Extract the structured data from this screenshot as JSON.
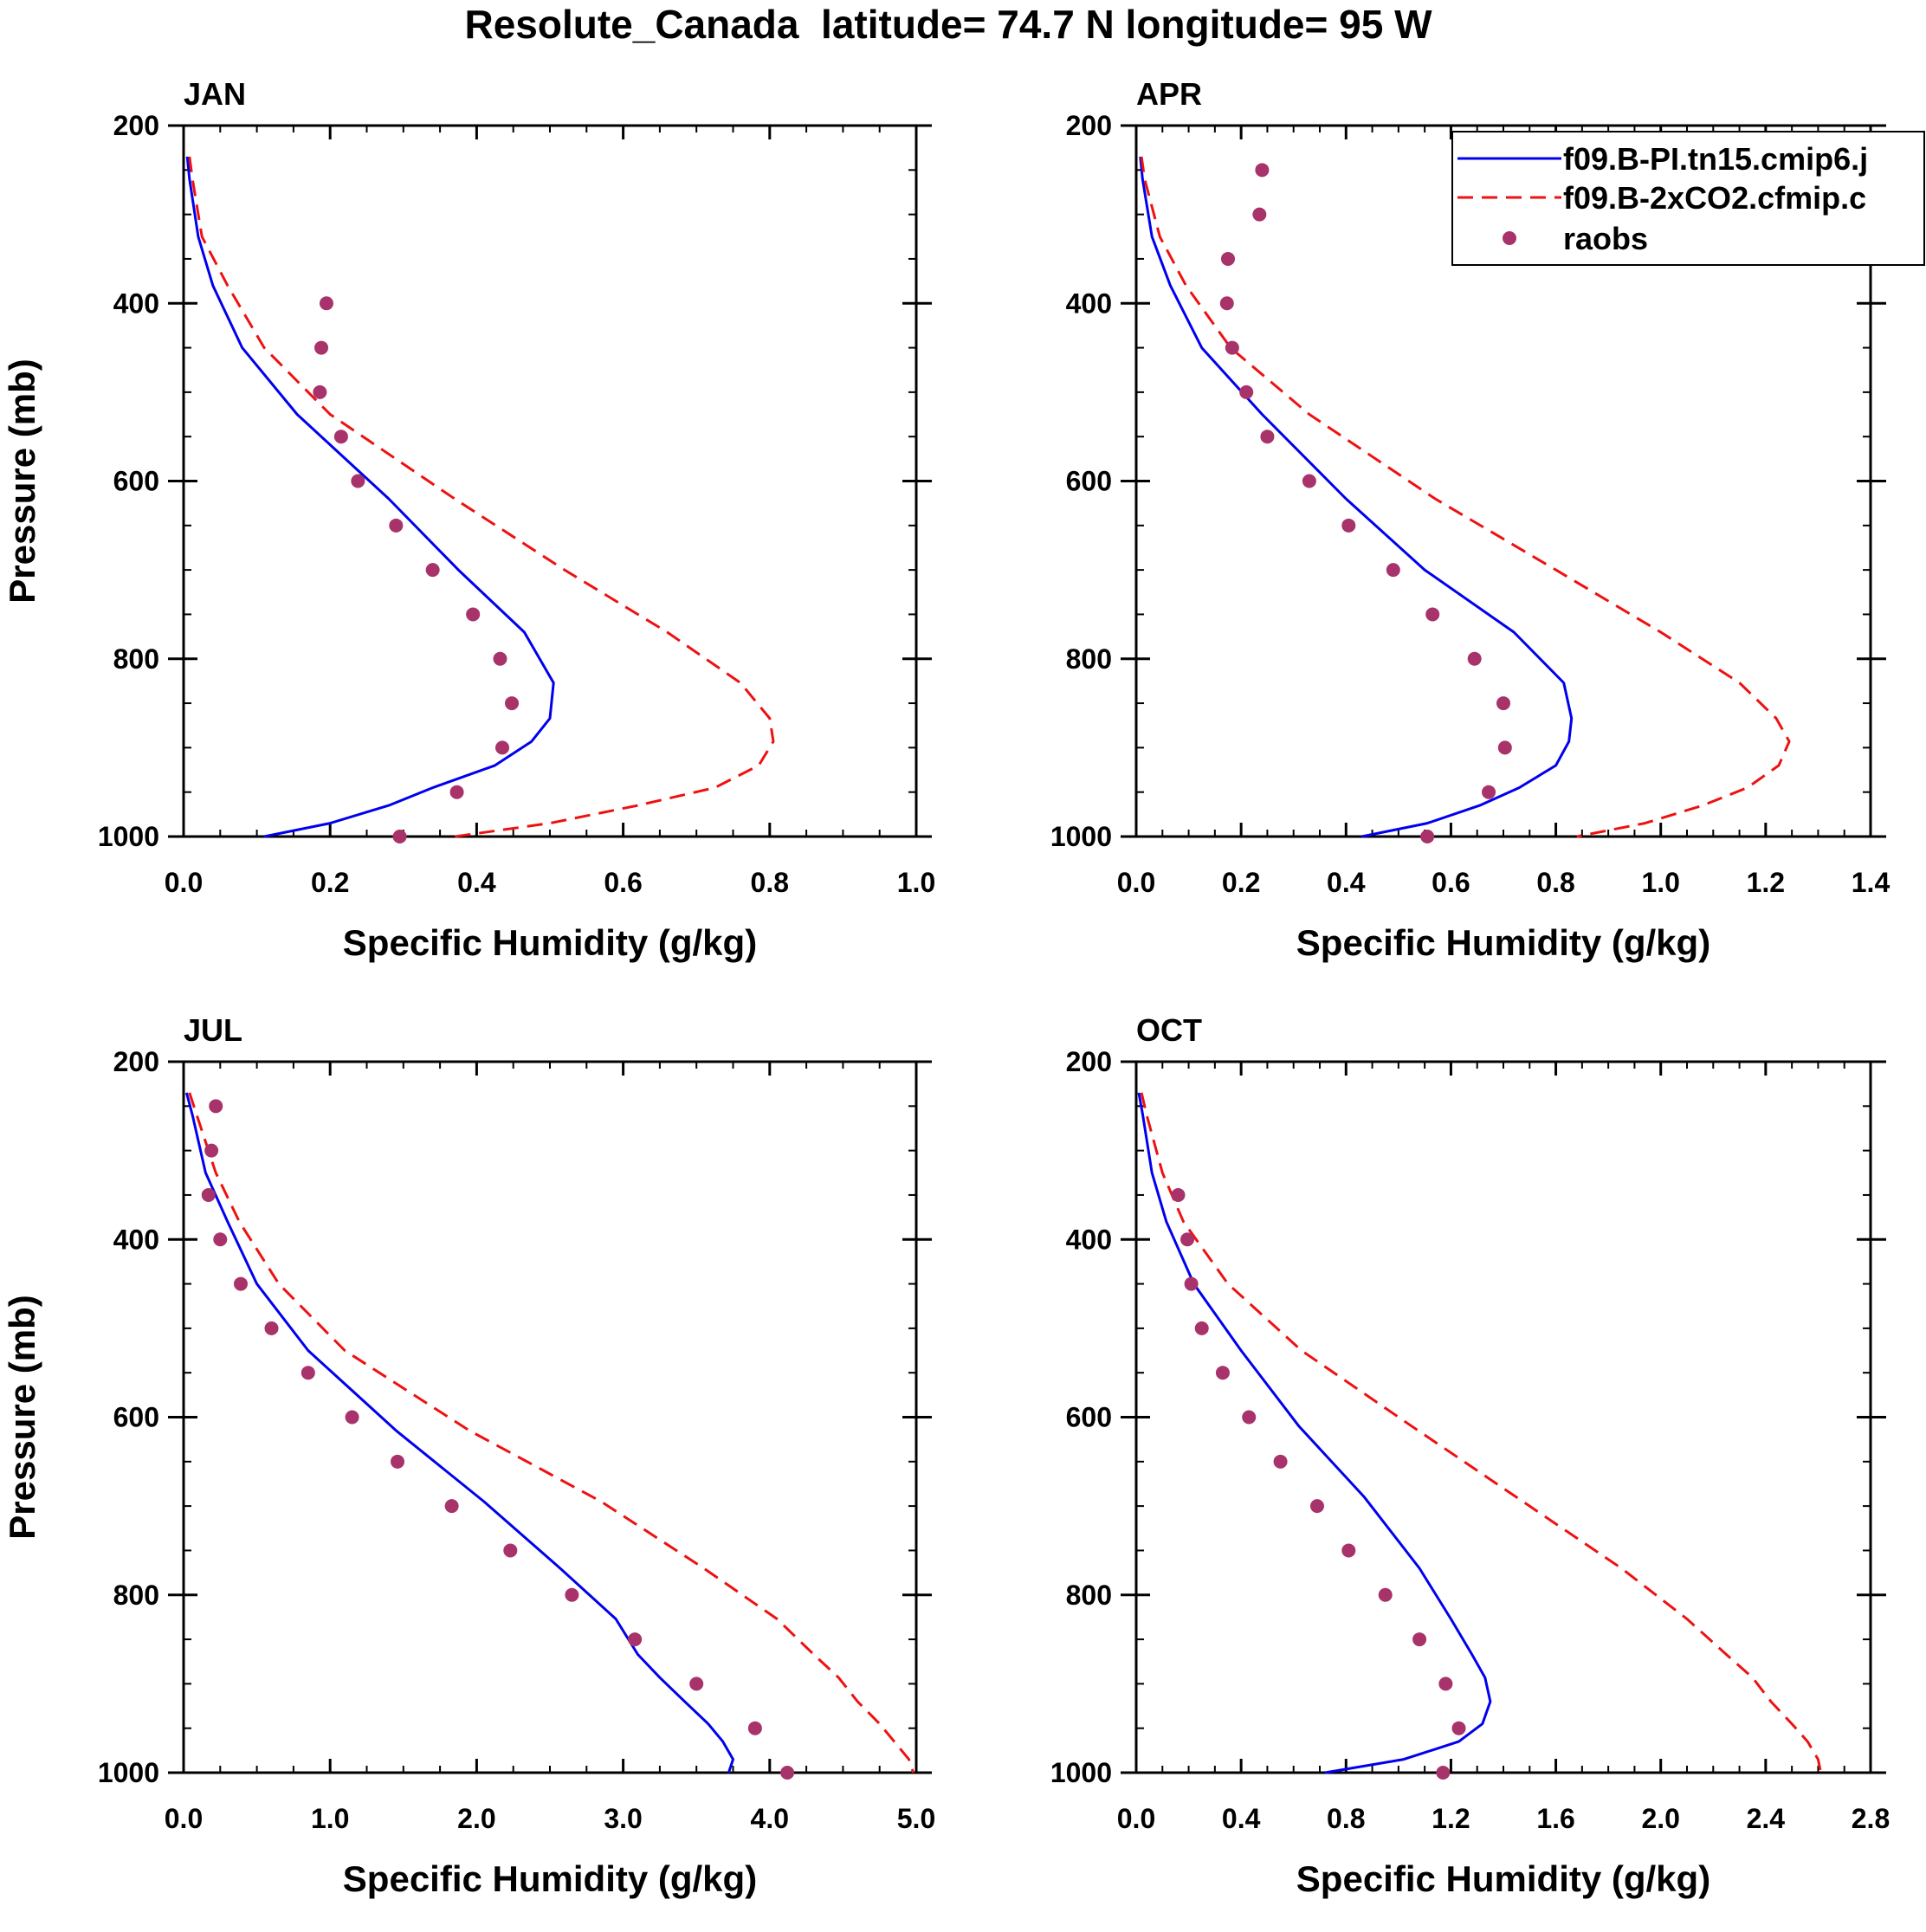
{
  "figure_title": "Resolute_Canada  latitude= 74.7 N longitude= 95 W",
  "colors": {
    "model1": "#0000ee",
    "model2": "#ee1111",
    "raobs": "#a8326a",
    "axes": "#000000"
  },
  "legend": {
    "position": "top-right of APR panel",
    "entries": [
      {
        "label": "f09.B-PI.tn15.cmip6.j",
        "style": "solid",
        "color": "#0000ee"
      },
      {
        "label": "f09.B-2xCO2.cfmip.c",
        "style": "dashed",
        "color": "#ee1111"
      },
      {
        "label": "raobs",
        "style": "markers",
        "color": "#a8326a"
      }
    ]
  },
  "chart_data": [
    {
      "type": "line",
      "title": "JAN",
      "xlabel": "Specific Humidity (g/kg)",
      "ylabel": "Pressure (mb)",
      "xlim": [
        0,
        1.0
      ],
      "ylim": [
        200,
        1000
      ],
      "y_inverted": true,
      "xticks": [
        0,
        0.2,
        0.4,
        0.6,
        0.8,
        1.0
      ],
      "xtick_labels": [
        "0.0",
        "0.2",
        "0.4",
        "0.6",
        "0.8",
        "1.0"
      ],
      "yticks": [
        200,
        400,
        600,
        800,
        1000
      ],
      "ytick_labels": [
        "200",
        "400",
        "600",
        "800",
        "1000"
      ],
      "series": [
        {
          "name": "f09.B-PI.tn15.cmip6.j",
          "style": "solid",
          "color": "#0000ee",
          "x": [
            0.005,
            0.008,
            0.02,
            0.04,
            0.08,
            0.155,
            0.28,
            0.375,
            0.465,
            0.505,
            0.5,
            0.475,
            0.425,
            0.34,
            0.28,
            0.2,
            0.11
          ],
          "p": [
            235,
            260,
            325,
            380,
            450,
            525,
            620,
            700,
            770,
            827,
            867,
            893,
            920,
            945,
            965,
            985,
            1000
          ]
        },
        {
          "name": "f09.B-2xCO2.cfmip.c",
          "style": "dashed",
          "color": "#ee1111",
          "x": [
            0.008,
            0.012,
            0.025,
            0.06,
            0.11,
            0.2,
            0.37,
            0.52,
            0.66,
            0.76,
            0.8,
            0.805,
            0.785,
            0.725,
            0.62,
            0.5,
            0.37
          ],
          "p": [
            235,
            260,
            325,
            380,
            450,
            525,
            620,
            700,
            770,
            827,
            867,
            893,
            920,
            945,
            965,
            985,
            1000
          ]
        },
        {
          "name": "raobs",
          "style": "markers",
          "color": "#a8326a",
          "x": [
            0.195,
            0.188,
            0.186,
            0.215,
            0.238,
            0.29,
            0.34,
            0.395,
            0.432,
            0.448,
            0.435,
            0.373,
            0.295
          ],
          "p": [
            400,
            450,
            500,
            550,
            600,
            650,
            700,
            750,
            800,
            850,
            900,
            950,
            1000
          ]
        }
      ]
    },
    {
      "type": "line",
      "title": "APR",
      "xlabel": "Specific Humidity (g/kg)",
      "ylabel": "",
      "xlim": [
        0,
        1.4
      ],
      "ylim": [
        200,
        1000
      ],
      "y_inverted": true,
      "xticks": [
        0,
        0.2,
        0.4,
        0.6,
        0.8,
        1.0,
        1.2,
        1.4
      ],
      "xtick_labels": [
        "0.0",
        "0.2",
        "0.4",
        "0.6",
        "0.8",
        "1.0",
        "1.2",
        "1.4"
      ],
      "yticks": [
        200,
        400,
        600,
        800,
        1000
      ],
      "ytick_labels": [
        "200",
        "400",
        "600",
        "800",
        "1000"
      ],
      "series": [
        {
          "name": "f09.B-PI.tn15.cmip6.j",
          "style": "solid",
          "color": "#0000ee",
          "x": [
            0.008,
            0.012,
            0.03,
            0.065,
            0.125,
            0.24,
            0.4,
            0.55,
            0.72,
            0.815,
            0.83,
            0.825,
            0.8,
            0.73,
            0.655,
            0.555,
            0.43
          ],
          "p": [
            235,
            260,
            325,
            380,
            450,
            525,
            620,
            700,
            770,
            827,
            867,
            893,
            920,
            945,
            965,
            985,
            1000
          ]
        },
        {
          "name": "f09.B-2xCO2.cfmip.c",
          "style": "dashed",
          "color": "#ee1111",
          "x": [
            0.01,
            0.016,
            0.045,
            0.095,
            0.18,
            0.33,
            0.57,
            0.8,
            1.0,
            1.15,
            1.22,
            1.245,
            1.225,
            1.165,
            1.08,
            0.97,
            0.84
          ],
          "p": [
            235,
            260,
            325,
            380,
            450,
            525,
            620,
            700,
            770,
            827,
            867,
            893,
            920,
            945,
            965,
            985,
            1000
          ]
        },
        {
          "name": "raobs",
          "style": "markers",
          "color": "#a8326a",
          "x": [
            0.24,
            0.235,
            0.175,
            0.173,
            0.183,
            0.21,
            0.25,
            0.33,
            0.405,
            0.49,
            0.565,
            0.645,
            0.7,
            0.703,
            0.672,
            0.555
          ],
          "p": [
            250,
            300,
            350,
            400,
            450,
            500,
            550,
            600,
            650,
            700,
            750,
            800,
            850,
            900,
            950,
            1000
          ]
        }
      ]
    },
    {
      "type": "line",
      "title": "JUL",
      "xlabel": "Specific Humidity (g/kg)",
      "ylabel": "Pressure (mb)",
      "xlim": [
        0,
        5.0
      ],
      "ylim": [
        200,
        1000
      ],
      "y_inverted": true,
      "xticks": [
        0,
        1,
        2,
        3,
        4,
        5
      ],
      "xtick_labels": [
        "0.0",
        "1.0",
        "2.0",
        "3.0",
        "4.0",
        "5.0"
      ],
      "yticks": [
        200,
        400,
        600,
        800,
        1000
      ],
      "ytick_labels": [
        "200",
        "400",
        "600",
        "800",
        "1000"
      ],
      "series": [
        {
          "name": "f09.B-PI.tn15.cmip6.j",
          "style": "solid",
          "color": "#0000ee",
          "x": [
            0.02,
            0.06,
            0.15,
            0.3,
            0.5,
            0.85,
            1.45,
            2.05,
            2.57,
            2.95,
            3.1,
            3.25,
            3.42,
            3.58,
            3.68,
            3.75,
            3.72
          ],
          "p": [
            235,
            260,
            325,
            380,
            450,
            525,
            615,
            695,
            770,
            827,
            867,
            893,
            920,
            945,
            965,
            985,
            1000
          ]
        },
        {
          "name": "f09.B-2xCO2.cfmip.c",
          "style": "dashed",
          "color": "#ee1111",
          "x": [
            0.04,
            0.09,
            0.22,
            0.38,
            0.65,
            1.1,
            1.95,
            2.85,
            3.55,
            4.05,
            4.3,
            4.47,
            4.6,
            4.75,
            4.85,
            4.95,
            4.98
          ],
          "p": [
            235,
            260,
            325,
            380,
            450,
            525,
            615,
            695,
            770,
            827,
            867,
            893,
            920,
            945,
            965,
            985,
            1000
          ]
        },
        {
          "name": "raobs",
          "style": "markers",
          "color": "#a8326a",
          "x": [
            0.22,
            0.19,
            0.17,
            0.25,
            0.39,
            0.6,
            0.85,
            1.15,
            1.46,
            1.83,
            2.23,
            2.65,
            3.08,
            3.5,
            3.9,
            4.12
          ],
          "p": [
            250,
            300,
            350,
            400,
            450,
            500,
            550,
            600,
            650,
            700,
            750,
            800,
            850,
            900,
            950,
            1000
          ]
        }
      ]
    },
    {
      "type": "line",
      "title": "OCT",
      "xlabel": "Specific Humidity (g/kg)",
      "ylabel": "",
      "xlim": [
        0,
        2.8
      ],
      "ylim": [
        200,
        1000
      ],
      "y_inverted": true,
      "xticks": [
        0,
        0.4,
        0.8,
        1.2,
        1.6,
        2.0,
        2.4,
        2.8
      ],
      "xtick_labels": [
        "0.0",
        "0.4",
        "0.8",
        "1.2",
        "1.6",
        "2.0",
        "2.4",
        "2.8"
      ],
      "yticks": [
        200,
        400,
        600,
        800,
        1000
      ],
      "ytick_labels": [
        "200",
        "400",
        "600",
        "800",
        "1000"
      ],
      "series": [
        {
          "name": "f09.B-PI.tn15.cmip6.j",
          "style": "solid",
          "color": "#0000ee",
          "x": [
            0.01,
            0.025,
            0.06,
            0.115,
            0.22,
            0.4,
            0.62,
            0.87,
            1.08,
            1.2,
            1.28,
            1.33,
            1.35,
            1.32,
            1.23,
            1.02,
            0.72
          ],
          "p": [
            235,
            260,
            325,
            380,
            450,
            525,
            610,
            690,
            770,
            827,
            867,
            893,
            920,
            945,
            965,
            985,
            1000
          ]
        },
        {
          "name": "f09.B-2xCO2.cfmip.c",
          "style": "dashed",
          "color": "#ee1111",
          "x": [
            0.02,
            0.04,
            0.1,
            0.18,
            0.35,
            0.63,
            1.05,
            1.45,
            1.85,
            2.1,
            2.25,
            2.35,
            2.42,
            2.5,
            2.56,
            2.6,
            2.61
          ],
          "p": [
            235,
            260,
            325,
            380,
            450,
            525,
            610,
            690,
            770,
            827,
            867,
            893,
            920,
            945,
            965,
            985,
            1000
          ]
        },
        {
          "name": "raobs",
          "style": "markers",
          "color": "#a8326a",
          "x": [
            0.16,
            0.195,
            0.21,
            0.25,
            0.33,
            0.43,
            0.55,
            0.69,
            0.81,
            0.95,
            1.08,
            1.18,
            1.23,
            1.17
          ],
          "p": [
            350,
            400,
            450,
            500,
            550,
            600,
            650,
            700,
            750,
            800,
            850,
            900,
            950,
            1000
          ]
        }
      ]
    }
  ]
}
